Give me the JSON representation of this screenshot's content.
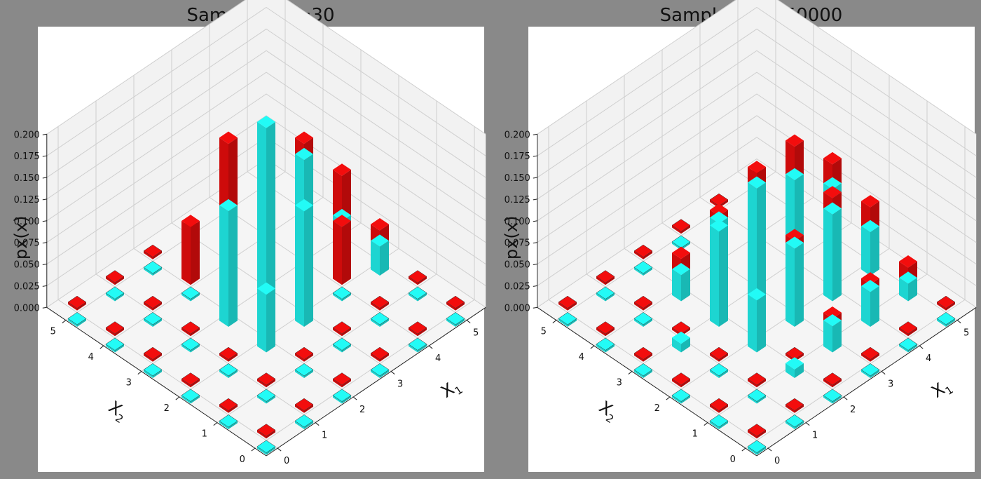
{
  "chart_data": [
    {
      "type": "bar3d",
      "title": "Sample size=30",
      "xlabel": "X",
      "xlabel_sub": "1",
      "ylabel": "X",
      "ylabel_sub": "2",
      "zlabel": "px(x)",
      "xlim": [
        0,
        5
      ],
      "ylim": [
        0,
        5
      ],
      "zlim": [
        0,
        0.2
      ],
      "xticks": [
        "0",
        "1",
        "2",
        "3",
        "4",
        "5"
      ],
      "yticks": [
        "0",
        "1",
        "2",
        "3",
        "4",
        "5"
      ],
      "zticks": [
        "0.000",
        "0.025",
        "0.050",
        "0.075",
        "0.100",
        "0.125",
        "0.150",
        "0.175",
        "0.200"
      ],
      "grid": true,
      "series": [
        {
          "color": "#1ee0dc",
          "values": [
            [
              0,
              0,
              0.0
            ],
            [
              0,
              1,
              0.0
            ],
            [
              0,
              2,
              0.0
            ],
            [
              0,
              3,
              0.0
            ],
            [
              0,
              4,
              0.0
            ],
            [
              0,
              5,
              0.0
            ],
            [
              1,
              0,
              0.0
            ],
            [
              1,
              1,
              0.0
            ],
            [
              1,
              2,
              0.0
            ],
            [
              1,
              3,
              0.0
            ],
            [
              1,
              4,
              0.0
            ],
            [
              1,
              5,
              0.0
            ],
            [
              2,
              0,
              0.0
            ],
            [
              2,
              1,
              0.0
            ],
            [
              2,
              2,
              0.0667
            ],
            [
              2,
              3,
              0.1333
            ],
            [
              2,
              4,
              0.0
            ],
            [
              2,
              5,
              0.0
            ],
            [
              3,
              0,
              0.0
            ],
            [
              3,
              1,
              0.0
            ],
            [
              3,
              2,
              0.1333
            ],
            [
              3,
              3,
              0.2
            ],
            [
              3,
              4,
              0.0
            ],
            [
              3,
              5,
              0.0
            ],
            [
              4,
              0,
              0.0
            ],
            [
              4,
              1,
              0.0
            ],
            [
              4,
              2,
              0.0
            ],
            [
              4,
              3,
              0.1333
            ],
            [
              4,
              4,
              0.0667
            ],
            [
              4,
              5,
              0.0
            ],
            [
              5,
              0,
              0.0
            ],
            [
              5,
              1,
              0.0
            ],
            [
              5,
              2,
              0.0333
            ],
            [
              5,
              3,
              0.0333
            ],
            [
              5,
              4,
              0.0
            ],
            [
              5,
              5,
              0.0
            ]
          ]
        },
        {
          "color": "#d90c0c",
          "values": [
            [
              0,
              0,
              0.0
            ],
            [
              0,
              1,
              0.0
            ],
            [
              0,
              2,
              0.0
            ],
            [
              0,
              3,
              0.0
            ],
            [
              0,
              4,
              0.0
            ],
            [
              0,
              5,
              0.0
            ],
            [
              1,
              0,
              0.0
            ],
            [
              1,
              1,
              0.0
            ],
            [
              1,
              2,
              0.0
            ],
            [
              1,
              3,
              0.0
            ],
            [
              1,
              4,
              0.0
            ],
            [
              1,
              5,
              0.0
            ],
            [
              2,
              0,
              0.0
            ],
            [
              2,
              1,
              0.0
            ],
            [
              2,
              2,
              0.0333
            ],
            [
              2,
              3,
              0.0667
            ],
            [
              2,
              4,
              0.0667
            ],
            [
              2,
              5,
              0.0
            ],
            [
              3,
              0,
              0.0
            ],
            [
              3,
              1,
              0.0
            ],
            [
              3,
              2,
              0.1
            ],
            [
              3,
              3,
              0.1
            ],
            [
              3,
              4,
              0.1333
            ],
            [
              3,
              5,
              0.0
            ],
            [
              4,
              0,
              0.0
            ],
            [
              4,
              1,
              0.0
            ],
            [
              4,
              2,
              0.0667
            ],
            [
              4,
              3,
              0.1333
            ],
            [
              4,
              4,
              0.0667
            ],
            [
              4,
              5,
              0.0
            ],
            [
              5,
              0,
              0.0
            ],
            [
              5,
              1,
              0.0
            ],
            [
              5,
              2,
              0.0333
            ],
            [
              5,
              3,
              0.0667
            ],
            [
              5,
              4,
              0.0333
            ],
            [
              5,
              5,
              0.0
            ]
          ]
        }
      ]
    },
    {
      "type": "bar3d",
      "title": "Sample size=50000",
      "xlabel": "X",
      "xlabel_sub": "1",
      "ylabel": "X",
      "ylabel_sub": "2",
      "zlabel": "px(x)",
      "xlim": [
        0,
        5
      ],
      "ylim": [
        0,
        5
      ],
      "zlim": [
        0,
        0.2
      ],
      "xticks": [
        "0",
        "1",
        "2",
        "3",
        "4",
        "5"
      ],
      "yticks": [
        "0",
        "1",
        "2",
        "3",
        "4",
        "5"
      ],
      "zticks": [
        "0.000",
        "0.025",
        "0.050",
        "0.075",
        "0.100",
        "0.125",
        "0.150",
        "0.175",
        "0.200"
      ],
      "grid": true,
      "series": [
        {
          "color": "#1ee0dc",
          "values": [
            [
              0,
              0,
              0.0
            ],
            [
              0,
              1,
              0.0
            ],
            [
              0,
              2,
              0.0
            ],
            [
              0,
              3,
              0.0
            ],
            [
              0,
              4,
              0.0
            ],
            [
              0,
              5,
              0.0
            ],
            [
              1,
              0,
              0.0
            ],
            [
              1,
              1,
              0.0
            ],
            [
              1,
              2,
              0.0
            ],
            [
              1,
              3,
              0.01
            ],
            [
              1,
              4,
              0.0
            ],
            [
              1,
              5,
              0.0
            ],
            [
              2,
              0,
              0.0
            ],
            [
              2,
              1,
              0.01
            ],
            [
              2,
              2,
              0.06
            ],
            [
              2,
              3,
              0.11
            ],
            [
              2,
              4,
              0.03
            ],
            [
              2,
              5,
              0.0
            ],
            [
              3,
              0,
              0.0
            ],
            [
              3,
              1,
              0.03
            ],
            [
              3,
              2,
              0.09
            ],
            [
              3,
              3,
              0.13
            ],
            [
              3,
              4,
              0.06
            ],
            [
              3,
              5,
              0.0
            ],
            [
              4,
              0,
              0.0
            ],
            [
              4,
              1,
              0.04
            ],
            [
              4,
              2,
              0.1
            ],
            [
              4,
              3,
              0.11
            ],
            [
              4,
              4,
              0.06
            ],
            [
              4,
              5,
              0.0
            ],
            [
              5,
              0,
              0.0
            ],
            [
              5,
              1,
              0.02
            ],
            [
              5,
              2,
              0.05
            ],
            [
              5,
              3,
              0.07
            ],
            [
              5,
              4,
              0.04
            ],
            [
              5,
              5,
              0.0
            ]
          ]
        },
        {
          "color": "#d90c0c",
          "values": [
            [
              0,
              0,
              0.0
            ],
            [
              0,
              1,
              0.0
            ],
            [
              0,
              2,
              0.0
            ],
            [
              0,
              3,
              0.0
            ],
            [
              0,
              4,
              0.0
            ],
            [
              0,
              5,
              0.0
            ],
            [
              1,
              0,
              0.0
            ],
            [
              1,
              1,
              0.0
            ],
            [
              1,
              2,
              0.0
            ],
            [
              1,
              3,
              0.0
            ],
            [
              1,
              4,
              0.0
            ],
            [
              1,
              5,
              0.0
            ],
            [
              2,
              0,
              0.0
            ],
            [
              2,
              1,
              0.0
            ],
            [
              2,
              2,
              0.02
            ],
            [
              2,
              3,
              0.05
            ],
            [
              2,
              4,
              0.03
            ],
            [
              2,
              5,
              0.0
            ],
            [
              3,
              0,
              0.0
            ],
            [
              3,
              1,
              0.02
            ],
            [
              3,
              2,
              0.08
            ],
            [
              3,
              3,
              0.1
            ],
            [
              3,
              4,
              0.05
            ],
            [
              3,
              5,
              0.0
            ],
            [
              4,
              0,
              0.0
            ],
            [
              4,
              1,
              0.03
            ],
            [
              4,
              2,
              0.1
            ],
            [
              4,
              3,
              0.13
            ],
            [
              4,
              4,
              0.07
            ],
            [
              4,
              5,
              0.0
            ],
            [
              5,
              0,
              0.0
            ],
            [
              5,
              1,
              0.02
            ],
            [
              5,
              2,
              0.06
            ],
            [
              5,
              3,
              0.08
            ],
            [
              5,
              4,
              0.05
            ],
            [
              5,
              5,
              0.0
            ]
          ]
        }
      ]
    }
  ]
}
